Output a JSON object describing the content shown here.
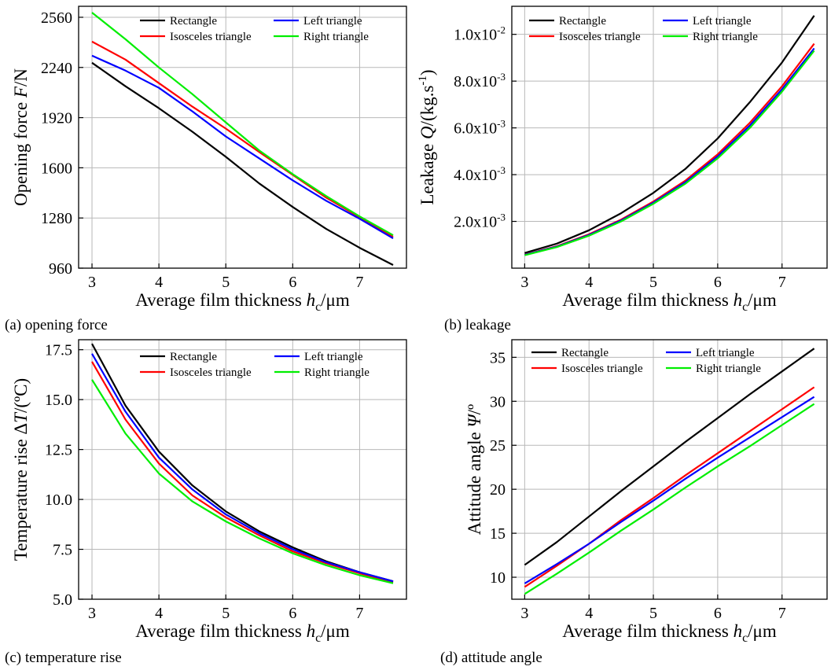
{
  "legend_names": {
    "rectangle": "Rectangle",
    "isosceles": "Isosceles triangle",
    "left": "Left triangle",
    "right": "Right triangle"
  },
  "series_colors": {
    "rectangle": "#000000",
    "isosceles": "#ff0000",
    "left": "#0000ff",
    "right": "#00ee00"
  },
  "chart_data": [
    {
      "id": "a",
      "type": "line",
      "caption": "(a) opening force",
      "xlabel": "Average film thickness hc/μm",
      "ylabel": "Opening force F/N",
      "xlim": [
        2.8,
        7.7
      ],
      "ylim": [
        960,
        2630
      ],
      "xticks": [
        3,
        4,
        5,
        6,
        7
      ],
      "yticks": [
        960,
        1280,
        1600,
        1920,
        2240,
        2560
      ],
      "ytick_labels": [
        "960",
        "1280",
        "1600",
        "1920",
        "2240",
        "2560"
      ],
      "x": [
        3,
        3.5,
        4,
        4.5,
        5,
        5.5,
        6,
        6.5,
        7,
        7.5
      ],
      "series": [
        {
          "key": "rectangle",
          "values": [
            2270,
            2120,
            1980,
            1830,
            1670,
            1500,
            1350,
            1210,
            1090,
            980
          ]
        },
        {
          "key": "isosceles",
          "values": [
            2405,
            2290,
            2140,
            1990,
            1850,
            1700,
            1555,
            1410,
            1285,
            1160
          ]
        },
        {
          "key": "left",
          "values": [
            2315,
            2220,
            2110,
            1960,
            1800,
            1660,
            1520,
            1390,
            1275,
            1150
          ]
        },
        {
          "key": "right",
          "values": [
            2590,
            2420,
            2240,
            2070,
            1890,
            1710,
            1560,
            1420,
            1290,
            1170
          ]
        }
      ]
    },
    {
      "id": "b",
      "type": "line",
      "caption": "(b) leakage",
      "xlabel": "Average film thickness hc/μm",
      "ylabel": "Leakage Q/(kg.s-1)",
      "xlim": [
        2.8,
        7.7
      ],
      "ylim": [
        0,
        0.0112
      ],
      "xticks": [
        3,
        4,
        5,
        6,
        7
      ],
      "yticks": [
        0.002,
        0.004,
        0.006,
        0.008,
        0.01
      ],
      "ytick_labels": [
        "2.0x10-3",
        "4.0x10-3",
        "6.0x10-3",
        "8.0x10-3",
        "1.0x10-2"
      ],
      "x": [
        3,
        3.5,
        4,
        4.5,
        5,
        5.5,
        6,
        6.5,
        7,
        7.5
      ],
      "series": [
        {
          "key": "rectangle",
          "values": [
            0.00065,
            0.00105,
            0.00162,
            0.00235,
            0.00322,
            0.00425,
            0.00555,
            0.0071,
            0.0088,
            0.0108
          ]
        },
        {
          "key": "isosceles",
          "values": [
            0.00058,
            0.00094,
            0.00145,
            0.00208,
            0.00285,
            0.00375,
            0.00487,
            0.00622,
            0.00778,
            0.0096
          ]
        },
        {
          "key": "left",
          "values": [
            0.00057,
            0.00092,
            0.00142,
            0.00204,
            0.0028,
            0.00368,
            0.00478,
            0.0061,
            0.00765,
            0.0094
          ]
        },
        {
          "key": "right",
          "values": [
            0.00055,
            0.0009,
            0.00139,
            0.002,
            0.00275,
            0.00362,
            0.0047,
            0.006,
            0.00755,
            0.0093
          ]
        }
      ]
    },
    {
      "id": "c",
      "type": "line",
      "caption": "(c) temperature rise",
      "xlabel": "Average film thickness hc/μm",
      "ylabel": "Temperature rise ΔT/(ºC)",
      "xlim": [
        2.8,
        7.7
      ],
      "ylim": [
        5.0,
        18.0
      ],
      "xticks": [
        3,
        4,
        5,
        6,
        7
      ],
      "yticks": [
        5.0,
        7.5,
        10.0,
        12.5,
        15.0,
        17.5
      ],
      "ytick_labels": [
        "5.0",
        "7.5",
        "10.0",
        "12.5",
        "15.0",
        "17.5"
      ],
      "x": [
        3,
        3.5,
        4,
        4.5,
        5,
        5.5,
        6,
        6.5,
        7,
        7.5
      ],
      "series": [
        {
          "key": "rectangle",
          "values": [
            17.8,
            14.7,
            12.4,
            10.7,
            9.4,
            8.4,
            7.6,
            6.9,
            6.35,
            5.9
          ]
        },
        {
          "key": "isosceles",
          "values": [
            16.9,
            14.0,
            11.8,
            10.2,
            9.1,
            8.2,
            7.4,
            6.8,
            6.3,
            5.85
          ]
        },
        {
          "key": "left",
          "values": [
            17.3,
            14.4,
            12.1,
            10.5,
            9.25,
            8.3,
            7.5,
            6.85,
            6.35,
            5.9
          ]
        },
        {
          "key": "right",
          "values": [
            16.0,
            13.3,
            11.3,
            9.9,
            8.9,
            8.05,
            7.3,
            6.7,
            6.2,
            5.8
          ]
        }
      ]
    },
    {
      "id": "d",
      "type": "line",
      "caption": "(d) attitude angle",
      "xlabel": "Average film thickness hc/μm",
      "ylabel": "Attitude angle Ψ/º",
      "xlim": [
        2.8,
        7.7
      ],
      "ylim": [
        7.5,
        37.0
      ],
      "xticks": [
        3,
        4,
        5,
        6,
        7
      ],
      "yticks": [
        10,
        15,
        20,
        25,
        30,
        35
      ],
      "ytick_labels": [
        "10",
        "15",
        "20",
        "25",
        "30",
        "35"
      ],
      "x": [
        3,
        3.5,
        4,
        4.5,
        5,
        5.5,
        6,
        6.5,
        7,
        7.5
      ],
      "series": [
        {
          "key": "rectangle",
          "values": [
            11.4,
            14.0,
            16.9,
            19.8,
            22.6,
            25.4,
            28.1,
            30.8,
            33.4,
            36.0
          ]
        },
        {
          "key": "isosceles",
          "values": [
            8.9,
            11.3,
            13.8,
            16.5,
            19.0,
            21.6,
            24.1,
            26.6,
            29.1,
            31.6
          ]
        },
        {
          "key": "left",
          "values": [
            9.3,
            11.5,
            13.8,
            16.3,
            18.7,
            21.2,
            23.6,
            25.9,
            28.2,
            30.5
          ]
        },
        {
          "key": "right",
          "values": [
            8.1,
            10.4,
            12.8,
            15.3,
            17.7,
            20.2,
            22.6,
            24.9,
            27.3,
            29.7
          ]
        }
      ]
    }
  ]
}
